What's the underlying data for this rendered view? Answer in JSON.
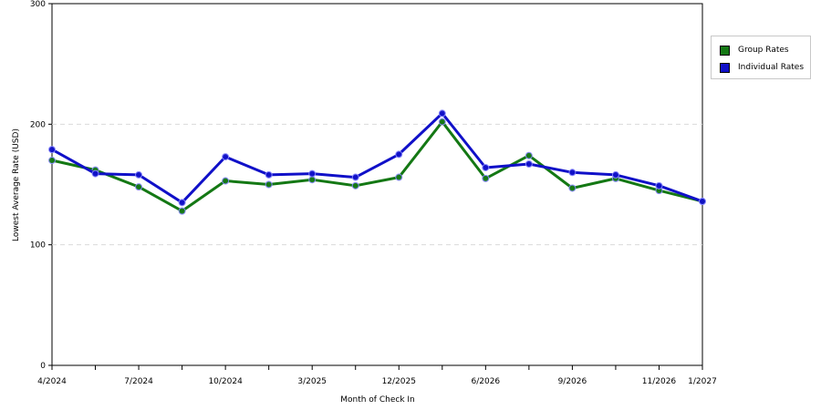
{
  "chart_data": {
    "type": "line",
    "title": "",
    "xlabel": "Month of Check In",
    "ylabel": "Lowest Average Rate (USD)",
    "ylim": [
      0,
      300
    ],
    "yticks": [
      "0",
      "100",
      "200",
      "300"
    ],
    "grid": true,
    "legend_position": "right",
    "x_tick_labels": [
      {
        "index": 0,
        "label": "4/2024"
      },
      {
        "index": 2,
        "label": "7/2024"
      },
      {
        "index": 4,
        "label": "10/2024"
      },
      {
        "index": 6,
        "label": "3/2025"
      },
      {
        "index": 8,
        "label": "12/2025"
      },
      {
        "index": 10,
        "label": "6/2026"
      },
      {
        "index": 12,
        "label": "9/2026"
      },
      {
        "index": 14,
        "label": "11/2026"
      },
      {
        "index": 15,
        "label": "1/2027"
      }
    ],
    "series": [
      {
        "name": "Group Rates",
        "color": "#147814",
        "values": [
          170,
          162,
          148,
          128,
          153,
          150,
          154,
          149,
          156,
          202,
          155,
          174,
          147,
          155,
          145,
          136
        ]
      },
      {
        "name": "Individual Rates",
        "color": "#1010c8",
        "values": [
          179,
          159,
          158,
          135,
          173,
          158,
          159,
          156,
          175,
          209,
          164,
          167,
          160,
          158,
          149,
          136
        ]
      }
    ]
  }
}
